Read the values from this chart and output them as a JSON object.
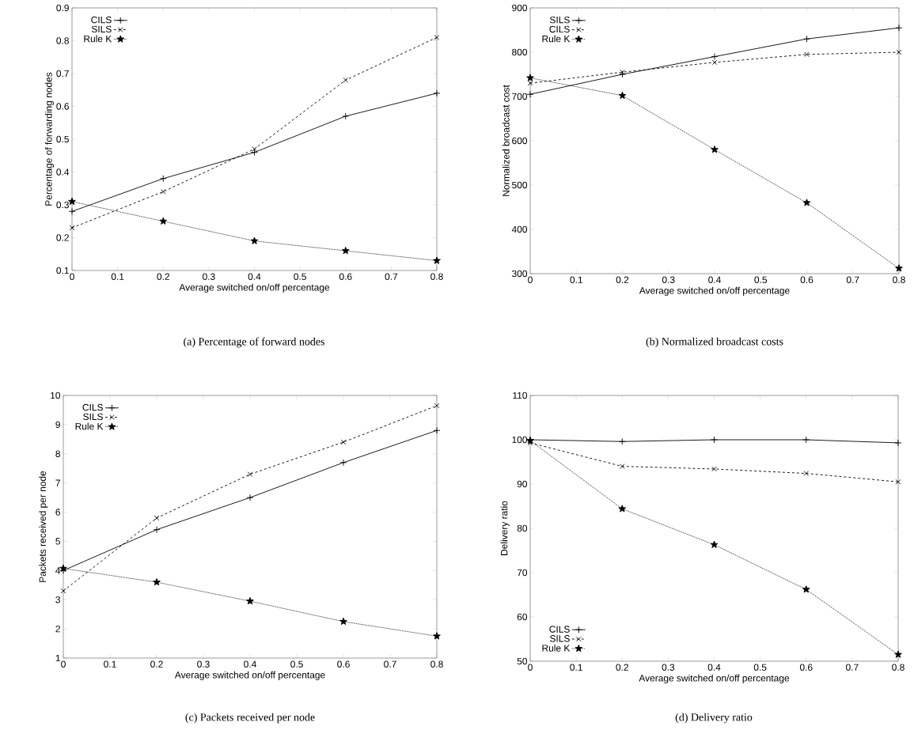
{
  "chart_data": [
    {
      "type": "line",
      "title": "(a)  Percentage of forward nodes",
      "xlabel": "Average switched on/off percentage",
      "ylabel": "Percentage of forwarding nodes",
      "x": [
        0,
        0.2,
        0.4,
        0.6,
        0.8
      ],
      "xlim": [
        0,
        0.8
      ],
      "xticks": [
        0,
        0.1,
        0.2,
        0.3,
        0.4,
        0.5,
        0.6,
        0.7,
        0.8
      ],
      "ylim": [
        0.1,
        0.9
      ],
      "yticks": [
        0.1,
        0.2,
        0.3,
        0.4,
        0.5,
        0.6,
        0.7,
        0.8,
        0.9
      ],
      "legend": "top left",
      "grid": false,
      "series": [
        {
          "name": "CILS",
          "color": "#000000",
          "marker": "cross",
          "line_style": "solid",
          "values": [
            0.28,
            0.38,
            0.46,
            0.57,
            0.64
          ]
        },
        {
          "name": "SILS",
          "color": "#000000",
          "marker": "x",
          "line_style": "dashed",
          "values": [
            0.23,
            0.34,
            0.47,
            0.68,
            0.81
          ]
        },
        {
          "name": "Rule K",
          "color": "#000000",
          "marker": "star",
          "line_style": "dotted",
          "values": [
            0.31,
            0.25,
            0.19,
            0.16,
            0.13
          ]
        }
      ]
    },
    {
      "type": "line",
      "title": "(b)  Normalized broadcast costs",
      "xlabel": "Average switched on/off percentage",
      "ylabel": "Normalized broadcast cost",
      "x": [
        0,
        0.2,
        0.4,
        0.6,
        0.8
      ],
      "xlim": [
        0,
        0.8
      ],
      "xticks": [
        0,
        0.1,
        0.2,
        0.3,
        0.4,
        0.5,
        0.6,
        0.7,
        0.8
      ],
      "ylim": [
        300,
        900
      ],
      "yticks": [
        300,
        400,
        500,
        600,
        700,
        800,
        900
      ],
      "legend": "top left",
      "grid": false,
      "series": [
        {
          "name": "SILS",
          "color": "#000000",
          "marker": "cross",
          "line_style": "solid",
          "values": [
            705,
            750,
            790,
            830,
            855
          ]
        },
        {
          "name": "CILS",
          "color": "#000000",
          "marker": "x",
          "line_style": "dashed",
          "values": [
            730,
            755,
            777,
            795,
            800
          ]
        },
        {
          "name": "Rule K",
          "color": "#000000",
          "marker": "star",
          "line_style": "dotted",
          "values": [
            742,
            702,
            580,
            460,
            312
          ]
        }
      ]
    },
    {
      "type": "line",
      "title": "(c)  Packets received per node",
      "xlabel": "Average switched on/off percentage",
      "ylabel": "Packets received per node",
      "x": [
        0,
        0.2,
        0.4,
        0.6,
        0.8
      ],
      "xlim": [
        0,
        0.8
      ],
      "xticks": [
        0,
        0.1,
        0.2,
        0.3,
        0.4,
        0.5,
        0.6,
        0.7,
        0.8
      ],
      "ylim": [
        1,
        10
      ],
      "yticks": [
        1,
        2,
        3,
        4,
        5,
        6,
        7,
        8,
        9,
        10
      ],
      "legend": "top left",
      "grid": false,
      "series": [
        {
          "name": "CILS",
          "color": "#000000",
          "marker": "cross",
          "line_style": "solid",
          "values": [
            4.0,
            5.4,
            6.5,
            7.7,
            8.8
          ]
        },
        {
          "name": "SILS",
          "color": "#000000",
          "marker": "x",
          "line_style": "dashed",
          "values": [
            3.3,
            5.8,
            7.3,
            8.4,
            9.65
          ]
        },
        {
          "name": "Rule K",
          "color": "#000000",
          "marker": "star",
          "line_style": "dotted",
          "values": [
            4.07,
            3.6,
            2.95,
            2.25,
            1.75
          ]
        }
      ]
    },
    {
      "type": "line",
      "title": "(d)  Delivery ratio",
      "xlabel": "Average switched on/off percentage",
      "ylabel": "Delivery ratio",
      "x": [
        0,
        0.2,
        0.4,
        0.6,
        0.8
      ],
      "xlim": [
        0,
        0.8
      ],
      "xticks": [
        0,
        0.1,
        0.2,
        0.3,
        0.4,
        0.5,
        0.6,
        0.7,
        0.8
      ],
      "ylim": [
        50,
        110
      ],
      "yticks": [
        50,
        60,
        70,
        80,
        90,
        100,
        110
      ],
      "legend": "bottom left",
      "grid": false,
      "series": [
        {
          "name": "CILS",
          "color": "#000000",
          "marker": "cross",
          "line_style": "solid",
          "values": [
            100,
            99.6,
            100,
            100,
            99.3
          ]
        },
        {
          "name": "SILS",
          "color": "#000000",
          "marker": "x",
          "line_style": "dashed",
          "values": [
            99.3,
            94,
            93.4,
            92.4,
            90.5
          ]
        },
        {
          "name": "Rule K",
          "color": "#000000",
          "marker": "star",
          "line_style": "dotted",
          "values": [
            99.8,
            84.4,
            76.3,
            66.2,
            51.5
          ]
        }
      ]
    }
  ]
}
